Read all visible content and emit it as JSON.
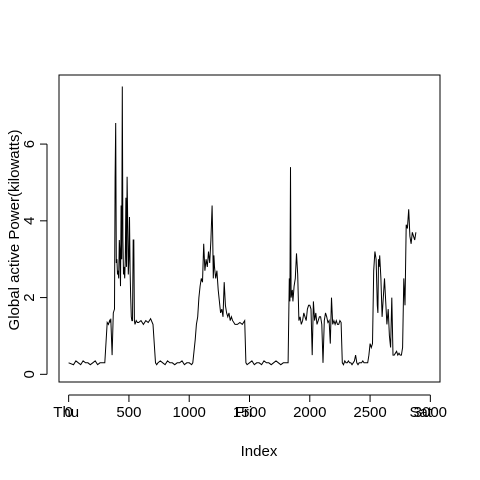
{
  "chart_data": {
    "type": "line",
    "title": "",
    "xlabel": "Index",
    "ylabel": "Global active Power(kilowatts)",
    "xlim": [
      -80,
      3080
    ],
    "ylim": [
      -0.2,
      7.8
    ],
    "grid": false,
    "legend": "none",
    "x_ticks": [
      0,
      500,
      1000,
      1500,
      2000,
      2500,
      3000
    ],
    "x_tick_labels": [
      "0",
      "500",
      "1000",
      "1500",
      "2000",
      "2500",
      "3000"
    ],
    "x_day_labels": [
      {
        "x": -20,
        "label": "Thu"
      },
      {
        "x": 1450,
        "label": "Fri"
      },
      {
        "x": 2920,
        "label": "Sat"
      }
    ],
    "y_ticks": [
      0,
      2,
      4,
      6
    ],
    "y_tick_labels": [
      "0",
      "2",
      "4",
      "6"
    ],
    "series": [
      {
        "name": "Global_active_power",
        "x": [
          0,
          40,
          60,
          80,
          100,
          120,
          140,
          160,
          180,
          200,
          220,
          240,
          260,
          280,
          300,
          320,
          330,
          340,
          345,
          350,
          360,
          370,
          380,
          385,
          390,
          395,
          400,
          405,
          410,
          415,
          420,
          425,
          430,
          435,
          440,
          445,
          450,
          455,
          460,
          465,
          470,
          475,
          480,
          485,
          490,
          495,
          500,
          505,
          510,
          515,
          520,
          525,
          530,
          535,
          540,
          545,
          550,
          560,
          570,
          580,
          600,
          620,
          640,
          660,
          680,
          700,
          720,
          730,
          740,
          760,
          780,
          800,
          820,
          840,
          860,
          880,
          900,
          920,
          940,
          960,
          980,
          1000,
          1020,
          1030,
          1040,
          1050,
          1060,
          1070,
          1080,
          1090,
          1100,
          1110,
          1120,
          1130,
          1140,
          1150,
          1160,
          1170,
          1180,
          1190,
          1195,
          1200,
          1205,
          1210,
          1220,
          1230,
          1240,
          1250,
          1260,
          1270,
          1280,
          1290,
          1300,
          1310,
          1320,
          1330,
          1340,
          1350,
          1360,
          1380,
          1400,
          1420,
          1440,
          1460,
          1470,
          1480,
          1500,
          1520,
          1540,
          1560,
          1580,
          1600,
          1620,
          1640,
          1660,
          1680,
          1700,
          1720,
          1740,
          1760,
          1780,
          1800,
          1810,
          1820,
          1830,
          1835,
          1840,
          1845,
          1850,
          1855,
          1860,
          1870,
          1880,
          1890,
          1900,
          1905,
          1910,
          1920,
          1930,
          1940,
          1950,
          1960,
          1970,
          1980,
          1990,
          2000,
          2010,
          2020,
          2030,
          2040,
          2050,
          2060,
          2070,
          2080,
          2090,
          2100,
          2110,
          2120,
          2130,
          2140,
          2150,
          2160,
          2170,
          2180,
          2190,
          2200,
          2210,
          2220,
          2230,
          2240,
          2250,
          2260,
          2270,
          2280,
          2290,
          2300,
          2310,
          2320,
          2330,
          2340,
          2350,
          2360,
          2370,
          2380,
          2390,
          2400,
          2410,
          2420,
          2430,
          2440,
          2450,
          2460,
          2470,
          2480,
          2490,
          2500,
          2510,
          2520,
          2530,
          2540,
          2550,
          2560,
          2565,
          2570,
          2575,
          2580,
          2590,
          2600,
          2610,
          2620,
          2630,
          2640,
          2650,
          2660,
          2670,
          2680,
          2690,
          2700,
          2710,
          2720,
          2730,
          2740,
          2750,
          2760,
          2770,
          2780,
          2790,
          2800,
          2810,
          2820,
          2830,
          2840,
          2850,
          2860,
          2870,
          2880
        ],
        "values": [
          0.3,
          0.25,
          0.35,
          0.3,
          0.25,
          0.35,
          0.3,
          0.3,
          0.25,
          0.3,
          0.35,
          0.25,
          0.3,
          0.3,
          0.3,
          1.35,
          1.3,
          1.4,
          1.35,
          1.45,
          0.5,
          1.6,
          1.7,
          5.1,
          6.55,
          2.9,
          3.0,
          2.6,
          2.7,
          2.5,
          3.5,
          3.2,
          2.3,
          4.4,
          3.0,
          7.5,
          3.5,
          2.6,
          2.8,
          2.5,
          3.0,
          4.6,
          2.8,
          5.15,
          4.0,
          2.6,
          3.0,
          4.1,
          2.7,
          2.0,
          1.5,
          1.4,
          1.4,
          3.5,
          3.5,
          1.4,
          1.3,
          1.4,
          1.35,
          1.35,
          1.4,
          1.3,
          1.4,
          1.35,
          1.45,
          1.3,
          0.3,
          0.25,
          0.3,
          0.35,
          0.3,
          0.25,
          0.35,
          0.3,
          0.3,
          0.25,
          0.3,
          0.3,
          0.35,
          0.25,
          0.3,
          0.3,
          0.25,
          0.3,
          0.6,
          0.9,
          1.3,
          1.5,
          2.0,
          2.3,
          2.5,
          2.4,
          3.4,
          2.7,
          3.0,
          2.8,
          3.2,
          2.9,
          3.5,
          4.4,
          3.6,
          2.5,
          3.1,
          2.8,
          2.5,
          2.7,
          2.2,
          1.9,
          1.6,
          1.7,
          1.5,
          2.4,
          1.8,
          1.6,
          1.5,
          1.6,
          1.4,
          1.5,
          1.4,
          1.3,
          1.3,
          1.35,
          1.3,
          1.4,
          0.3,
          0.25,
          0.3,
          0.35,
          0.25,
          0.3,
          0.3,
          0.25,
          0.35,
          0.3,
          0.3,
          0.25,
          0.3,
          0.35,
          0.3,
          0.25,
          0.3,
          0.3,
          0.3,
          0.3,
          2.5,
          1.9,
          5.4,
          2.0,
          2.1,
          2.2,
          1.9,
          2.3,
          2.5,
          3.15,
          2.6,
          2.0,
          1.4,
          1.5,
          1.3,
          1.4,
          1.6,
          1.5,
          1.4,
          1.7,
          1.8,
          1.8,
          1.7,
          0.5,
          1.9,
          1.4,
          1.6,
          1.3,
          1.4,
          1.5,
          1.5,
          1.3,
          0.3,
          1.4,
          1.6,
          1.5,
          1.35,
          1.4,
          0.8,
          2.0,
          1.3,
          1.4,
          1.3,
          1.4,
          1.3,
          1.3,
          1.4,
          1.35,
          0.3,
          0.25,
          0.35,
          0.3,
          0.3,
          0.35,
          0.3,
          0.3,
          0.25,
          0.3,
          0.35,
          0.5,
          0.3,
          0.25,
          0.3,
          0.3,
          0.3,
          0.35,
          0.3,
          0.3,
          0.3,
          0.3,
          0.5,
          0.8,
          0.7,
          0.8,
          2.7,
          3.2,
          3.0,
          1.8,
          1.6,
          3.0,
          2.8,
          3.1,
          2.5,
          1.5,
          2.0,
          2.5,
          1.9,
          1.3,
          1.7,
          1.0,
          0.7,
          2.0,
          0.5,
          0.5,
          0.55,
          0.6,
          0.5,
          0.55,
          0.5,
          0.5,
          0.7,
          2.5,
          1.8,
          3.9,
          3.8,
          4.3,
          3.6,
          3.4,
          3.7,
          3.6,
          3.5,
          3.7
        ]
      }
    ]
  }
}
